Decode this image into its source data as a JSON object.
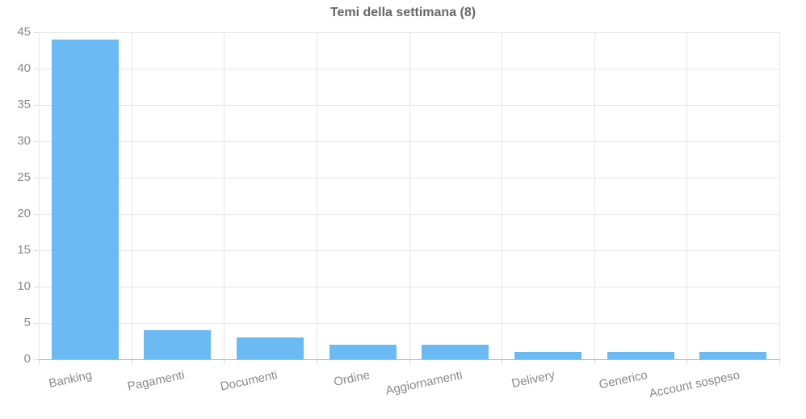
{
  "chart_data": {
    "type": "bar",
    "title": "Temi della settimana (8)",
    "categories": [
      "Banking",
      "Pagamenti",
      "Documenti",
      "Ordine",
      "Aggiornamenti",
      "Delivery",
      "Generico",
      "Account sospeso"
    ],
    "values": [
      44,
      4,
      3,
      2,
      2,
      1,
      1,
      1
    ],
    "xlabel": "",
    "ylabel": "",
    "ylim": [
      0,
      45
    ],
    "ytick_step": 5,
    "ytick_labels": [
      "0",
      "5",
      "10",
      "15",
      "20",
      "25",
      "30",
      "35",
      "40",
      "45"
    ],
    "grid": true,
    "legend_position": "none",
    "x_label_rotation_deg": -12,
    "colors": {
      "bar": "#6cbaf4",
      "grid": "#e6e6e6",
      "baseline": "#b7b7b7",
      "tick_stub": "#d9d9d9",
      "tick_label": "#8a8a8a",
      "title": "#666666",
      "background": "#ffffff"
    }
  }
}
